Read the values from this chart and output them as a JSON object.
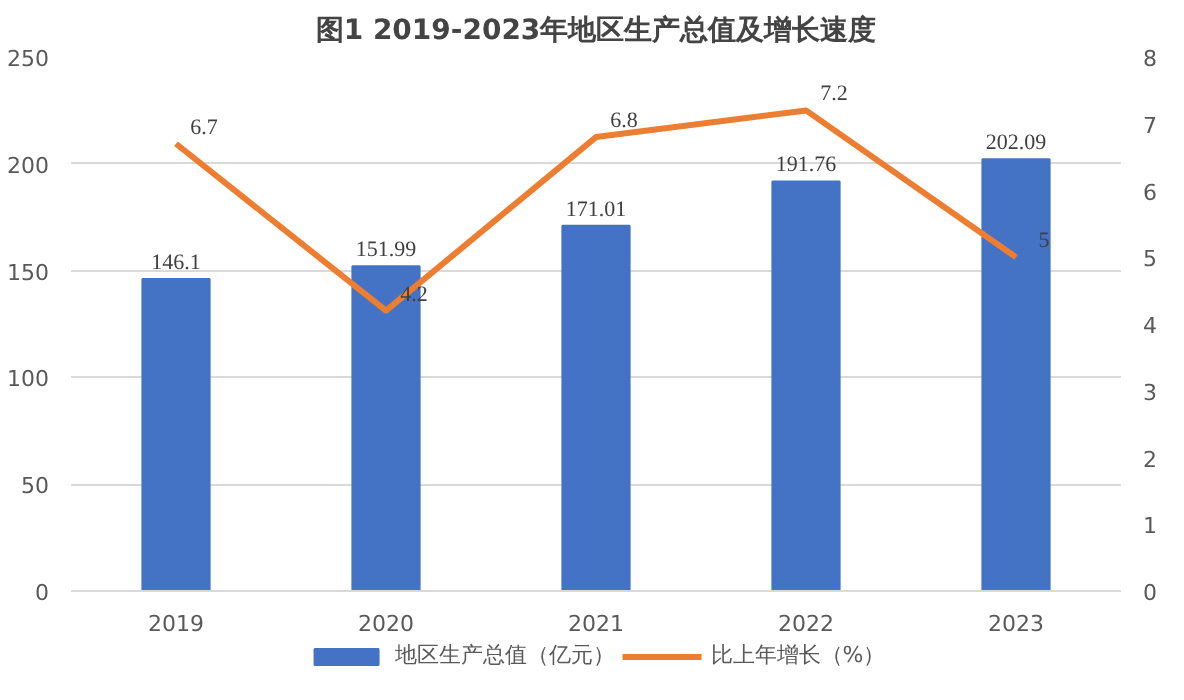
{
  "chart_data": {
    "type": "bar",
    "title": "图1 2019-2023年地区生产总值及增长速度",
    "categories": [
      "2019",
      "2020",
      "2021",
      "2022",
      "2023"
    ],
    "series": [
      {
        "name": "地区生产总值（亿元）",
        "color": "#4472c4",
        "values": [
          146.1,
          151.99,
          171.01,
          191.76,
          202.09
        ]
      },
      {
        "name": "比上年增长（%）",
        "color": "#ed7d31",
        "type": "line",
        "axis": "y2",
        "values": [
          6.7,
          4.2,
          6.8,
          7.2,
          5
        ]
      }
    ],
    "ylim": [
      0,
      250
    ],
    "yticks": [
      0,
      50,
      100,
      150,
      200,
      250
    ],
    "y2lim": [
      0,
      8
    ],
    "y2ticks": [
      0,
      1,
      2,
      3,
      4,
      5,
      6,
      7,
      8
    ],
    "grid": "y",
    "legend": "bottom",
    "data_labels": true,
    "marker": "none",
    "line_style": "solid"
  }
}
